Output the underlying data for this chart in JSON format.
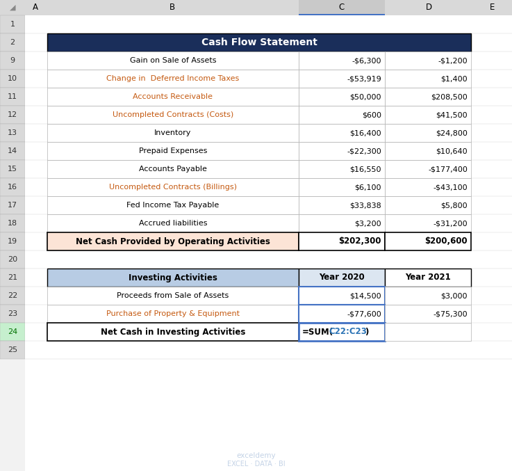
{
  "title": "Cash Flow Statement",
  "title_bg": "#1a2e5a",
  "title_fg": "#ffffff",
  "section1_rows": [
    {
      "label": "Gain on Sale of Assets",
      "c": "-$6,300",
      "d": "-$1,200",
      "label_color": "#000000"
    },
    {
      "label": "Change in  Deferred Income Taxes",
      "c": "-$53,919",
      "d": "$1,400",
      "label_color": "#c55a11"
    },
    {
      "label": "Accounts Receivable",
      "c": "$50,000",
      "d": "$208,500",
      "label_color": "#c55a11"
    },
    {
      "label": "Uncompleted Contracts (Costs)",
      "c": "$600",
      "d": "$41,500",
      "label_color": "#c55a11"
    },
    {
      "label": "Inventory",
      "c": "$16,400",
      "d": "$24,800",
      "label_color": "#000000"
    },
    {
      "label": "Prepaid Expenses",
      "c": "-$22,300",
      "d": "$10,640",
      "label_color": "#000000"
    },
    {
      "label": "Accounts Payable",
      "c": "$16,550",
      "d": "-$177,400",
      "label_color": "#000000"
    },
    {
      "label": "Uncompleted Contracts (Billings)",
      "c": "$6,100",
      "d": "-$43,100",
      "label_color": "#c55a11"
    },
    {
      "label": "Fed Income Tax Payable",
      "c": "$33,838",
      "d": "$5,800",
      "label_color": "#000000"
    },
    {
      "label": "Accrued liabilities",
      "c": "$3,200",
      "d": "-$31,200",
      "label_color": "#000000"
    }
  ],
  "section1_total_label": "Net Cash Provided by Operating Activities",
  "section1_total_c": "$202,300",
  "section1_total_d": "$200,600",
  "section1_total_bg": "#fce4d6",
  "section2_header_label": "Investing Activities",
  "section2_header_c": "Year 2020",
  "section2_header_d": "Year 2021",
  "section2_header_bg": "#b8cce4",
  "section2_col_c_bg": "#dce6f1",
  "section2_rows": [
    {
      "label": "Proceeds from Sale of Assets",
      "c": "$14,500",
      "d": "$3,000",
      "label_color": "#000000"
    },
    {
      "label": "Purchase of Property & Equipment",
      "c": "-$77,600",
      "d": "-$75,300",
      "label_color": "#c55a11"
    }
  ],
  "section2_total_label": "Net Cash in Investing Activities",
  "section2_total_c_prefix": "=SUM(",
  "section2_total_c_ref": "C22:C23",
  "section2_total_c_suffix": ")",
  "watermark_line1": "exceldemy",
  "watermark_line2": "EXCEL · DATA · BI",
  "bg_color": "#f2f2f2",
  "header_row_bg": "#d9d9d9",
  "row_nums": [
    1,
    2,
    9,
    10,
    11,
    12,
    13,
    14,
    15,
    16,
    17,
    18,
    19,
    20,
    21,
    22,
    23,
    24,
    25
  ],
  "col_labels": [
    "A",
    "B",
    "C",
    "D",
    "E"
  ],
  "col_header_selected_bg": "#c0c0c0",
  "col_c_selected_bg": "#c9c9c9",
  "col_c_indicator": "#4472c4"
}
